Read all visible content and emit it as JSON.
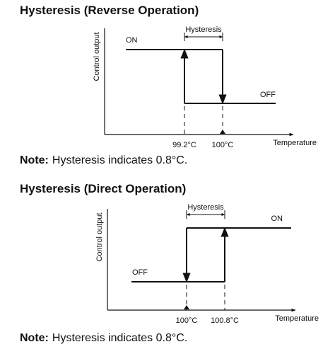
{
  "sections": [
    {
      "title": "Hysteresis (Reverse Operation)",
      "diagram": {
        "y_label": "Control output",
        "x_label": "Temperature",
        "hysteresis_label": "Hysteresis",
        "on_label": "ON",
        "off_label": "OFF",
        "tick_labels": [
          "99.2°C",
          "100°C"
        ]
      },
      "note": {
        "label": "Note:",
        "text": "Hysteresis indicates 0.8°C."
      }
    },
    {
      "title": "Hysteresis (Direct Operation)",
      "diagram": {
        "y_label": "Control output",
        "x_label": "Temperature",
        "hysteresis_label": "Hysteresis",
        "on_label": "ON",
        "off_label": "OFF",
        "tick_labels": [
          "100°C",
          "100.8°C"
        ]
      },
      "note": {
        "label": "Note:",
        "text": "Hysteresis indicates 0.8°C."
      }
    }
  ]
}
